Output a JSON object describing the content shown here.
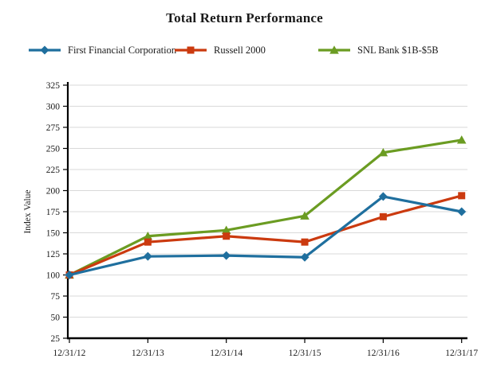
{
  "chart_data": {
    "type": "line",
    "title": "Total Return Performance",
    "ylabel": "Index Value",
    "xlabel": "",
    "categories": [
      "12/31/12",
      "12/31/13",
      "12/31/14",
      "12/31/15",
      "12/31/16",
      "12/31/17"
    ],
    "series": [
      {
        "name": "First Financial Corporation",
        "marker": "diamond",
        "color": "#1F6F9E",
        "values": [
          100,
          122,
          123,
          121,
          193,
          175
        ]
      },
      {
        "name": "Russell 2000",
        "marker": "square",
        "color": "#CB3A0F",
        "values": [
          100,
          139,
          146,
          139,
          169,
          194
        ]
      },
      {
        "name": "SNL Bank $1B-$5B",
        "marker": "triangle",
        "color": "#6B9C22",
        "values": [
          100,
          146,
          153,
          170,
          245,
          260
        ]
      }
    ],
    "ylim": [
      25,
      325
    ],
    "ytick_step": 25,
    "ytick_labels": [
      "25",
      "50",
      "75",
      "100",
      "125",
      "150",
      "175",
      "200",
      "225",
      "250",
      "275",
      "300",
      "325"
    ],
    "grid": "horizontal",
    "legend_position": "top",
    "colors": {
      "gridline": "#D9D9D9",
      "axis": "#000000",
      "text": "#1A1A1A",
      "background": "#FFFFFF"
    }
  }
}
